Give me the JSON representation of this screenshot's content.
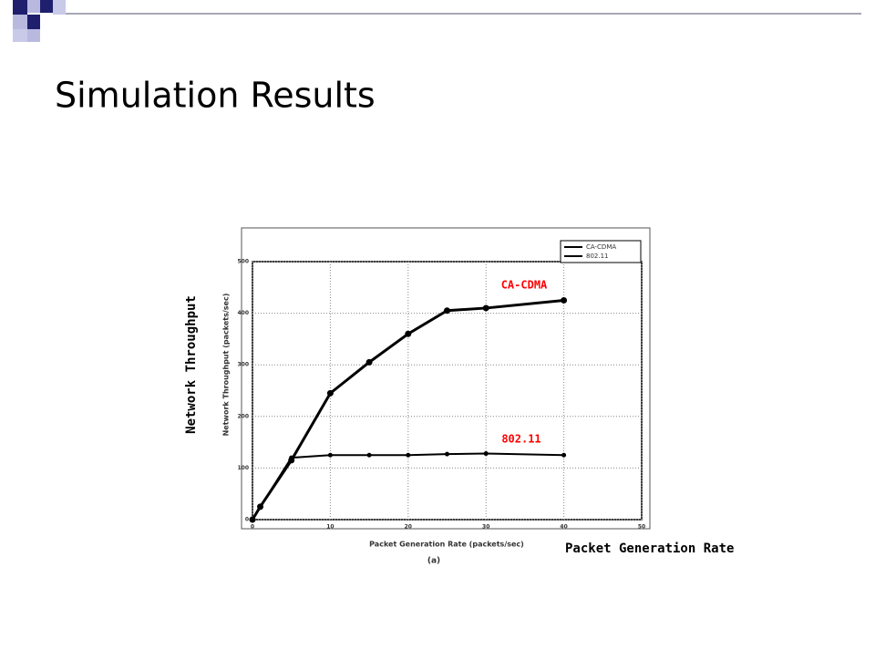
{
  "slide_title": "Simulation Results",
  "chart_data": {
    "type": "line",
    "x_label": "Packet Generation Rate (packets/sec)",
    "y_label": "Network Throughput (packets/sec)",
    "caption": "(a)",
    "annotations": [
      "CA-CDMA",
      "802.11",
      "Network Throughput",
      "Packet Generation Rate"
    ],
    "x": [
      0,
      1,
      5,
      10,
      15,
      20,
      25,
      30,
      40
    ],
    "series": [
      {
        "name": "CA-CDMA",
        "color": "#000000",
        "values": [
          0,
          25,
          115,
          245,
          305,
          360,
          405,
          410,
          425
        ]
      },
      {
        "name": "802.11",
        "color": "#000000",
        "values": [
          0,
          25,
          120,
          125,
          125,
          125,
          127,
          128,
          125
        ]
      }
    ],
    "xlim": [
      0,
      50
    ],
    "xticks": [
      0,
      10,
      20,
      30,
      40,
      50
    ],
    "ylim": [
      0,
      500
    ],
    "yticks": [
      0,
      100,
      200,
      300,
      400,
      500
    ],
    "grid": true,
    "legend": "top-right"
  }
}
